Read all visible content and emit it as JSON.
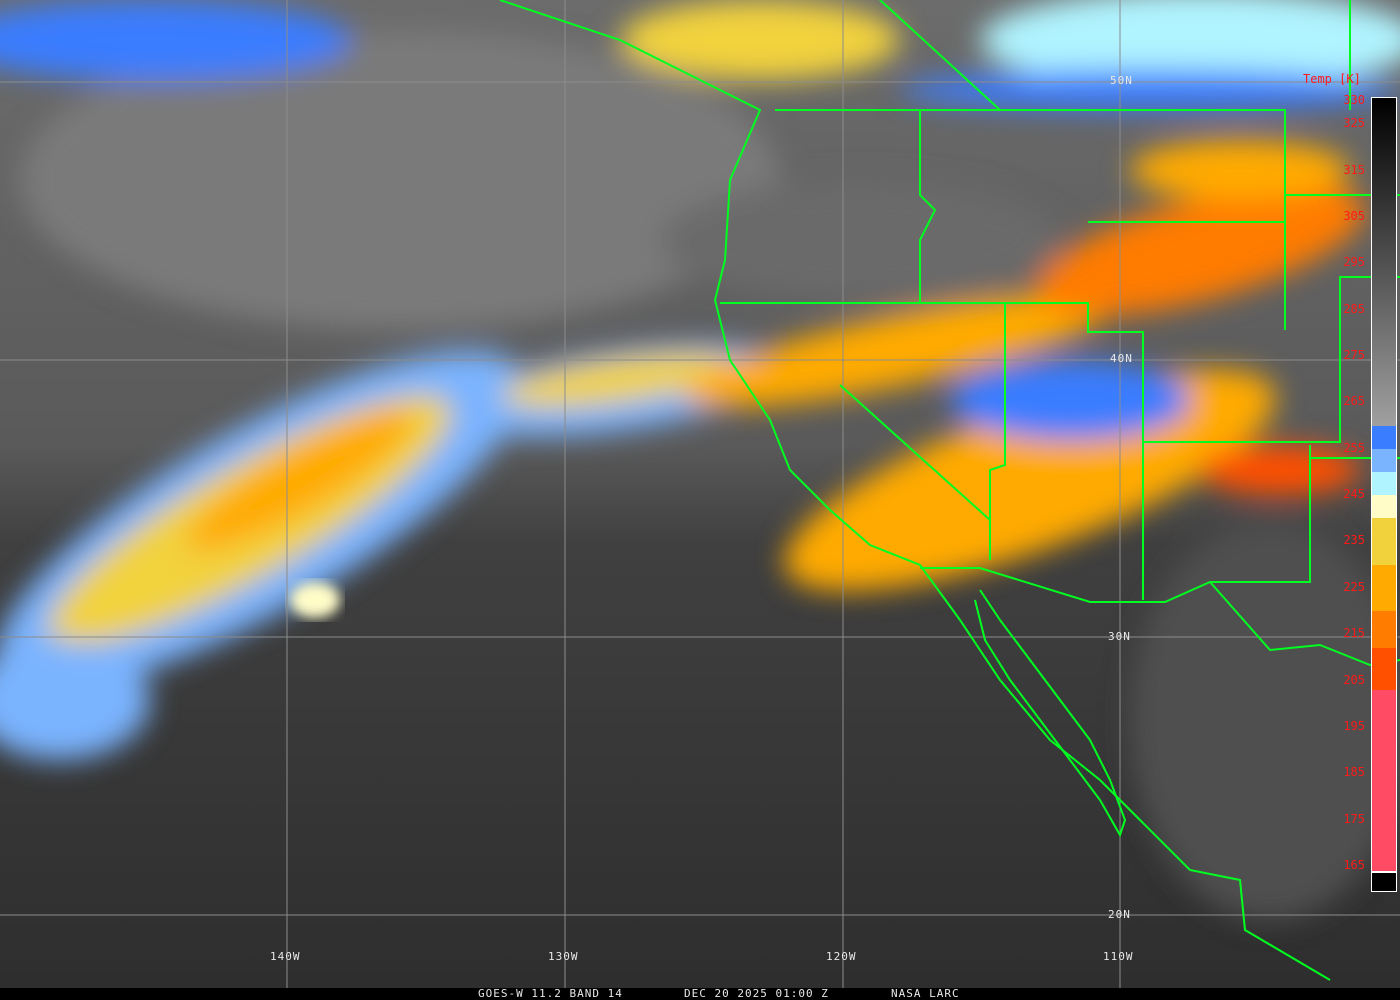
{
  "product": {
    "satellite_band": "GOES-W 11.2 BAND 14",
    "datetime": "DEC 20 2025 01:00 Z",
    "source": "NASA LARC"
  },
  "grid": {
    "latitudes": [
      "50N",
      "40N",
      "30N",
      "20N"
    ],
    "longitudes": [
      "140W",
      "130W",
      "120W",
      "110W"
    ]
  },
  "colorbar": {
    "title": "Temp [K]",
    "ticks": [
      "330",
      "325",
      "315",
      "305",
      "295",
      "285",
      "275",
      "265",
      "255",
      "245",
      "235",
      "225",
      "215",
      "205",
      "195",
      "185",
      "175",
      "165"
    ],
    "segments": [
      {
        "from_k": 335,
        "to_k": 260,
        "color": "gradient",
        "color_top": "#000000",
        "color_bottom": "#a0a0a0"
      },
      {
        "from_k": 260,
        "to_k": 255,
        "color": "#3a7dff"
      },
      {
        "from_k": 255,
        "to_k": 250,
        "color": "#7ab4ff"
      },
      {
        "from_k": 250,
        "to_k": 245,
        "color": "#b0f4ff"
      },
      {
        "from_k": 245,
        "to_k": 240,
        "color": "#fffcc8"
      },
      {
        "from_k": 240,
        "to_k": 230,
        "color": "#f2d23c"
      },
      {
        "from_k": 230,
        "to_k": 220,
        "color": "#ffaa00"
      },
      {
        "from_k": 220,
        "to_k": 212,
        "color": "#ff7c00"
      },
      {
        "from_k": 212,
        "to_k": 203,
        "color": "#ff5000"
      },
      {
        "from_k": 203,
        "to_k": 164,
        "color": "#ff4c64"
      },
      {
        "from_k": 164,
        "to_k": 163.5,
        "color": "#ffffff"
      },
      {
        "from_k": 163.5,
        "to_k": 160,
        "color": "#000000"
      }
    ]
  },
  "colors": {
    "boundaries": "#00ff20",
    "graticule": "#8c8c8c",
    "labels": "#ff1a1a"
  }
}
